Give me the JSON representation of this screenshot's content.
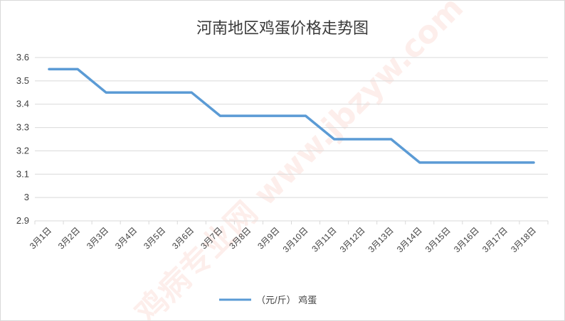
{
  "chart_data": {
    "type": "line",
    "title": "河南地区鸡蛋价格走势图",
    "xlabel": "",
    "ylabel": "",
    "ylim": [
      2.9,
      3.6
    ],
    "yticks": [
      "2.9",
      "3",
      "3.1",
      "3.2",
      "3.3",
      "3.4",
      "3.5",
      "3.6"
    ],
    "grid": true,
    "legend": "bottom",
    "categories": [
      "3月1日",
      "3月2日",
      "3月3日",
      "3月4日",
      "3月5日",
      "3月6日",
      "3月7日",
      "3月8日",
      "3月9日",
      "3月10日",
      "3月11日",
      "3月12日",
      "3月13日",
      "3月14日",
      "3月15日",
      "3月16日",
      "3月17日",
      "3月18日"
    ],
    "series": [
      {
        "name": "（元/斤）  鸡蛋",
        "color": "#5b9bd5",
        "values": [
          3.55,
          3.55,
          3.45,
          3.45,
          3.45,
          3.45,
          3.35,
          3.35,
          3.35,
          3.35,
          3.25,
          3.25,
          3.25,
          3.15,
          3.15,
          3.15,
          3.15,
          3.15
        ]
      }
    ],
    "watermark": "鸡病专业网 www.jbzyw.com"
  }
}
